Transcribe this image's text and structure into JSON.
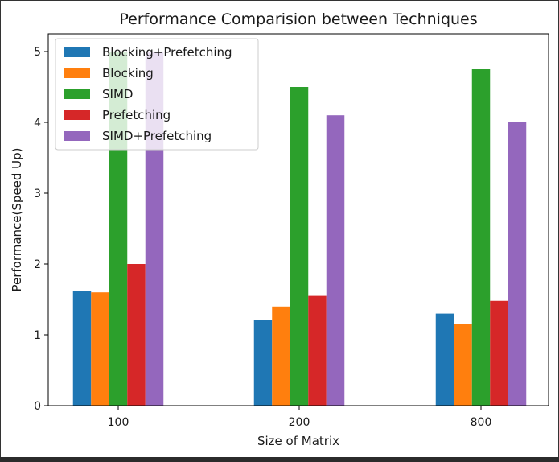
{
  "chart_data": {
    "type": "bar",
    "title": "Performance Comparision between Techniques",
    "xlabel": "Size of Matrix",
    "ylabel": "Performance(Speed Up)",
    "categories": [
      "100",
      "200",
      "800"
    ],
    "ylim": [
      0,
      5.25
    ],
    "yticks": [
      "0",
      "1",
      "2",
      "3",
      "4",
      "5"
    ],
    "grid": false,
    "legend_position": "top-left",
    "series": [
      {
        "name": "Blocking+Prefetching",
        "color": "#1f77b4",
        "values": [
          1.62,
          1.21,
          1.3
        ]
      },
      {
        "name": "Blocking",
        "color": "#ff7f0e",
        "values": [
          1.6,
          1.4,
          1.15
        ]
      },
      {
        "name": "SIMD",
        "color": "#2ca02c",
        "values": [
          5.0,
          4.5,
          4.75
        ]
      },
      {
        "name": "Prefetching",
        "color": "#d62728",
        "values": [
          2.0,
          1.55,
          1.48
        ]
      },
      {
        "name": "SIMD+Prefetching",
        "color": "#9467bd",
        "values": [
          5.0,
          4.1,
          4.0
        ]
      }
    ]
  }
}
